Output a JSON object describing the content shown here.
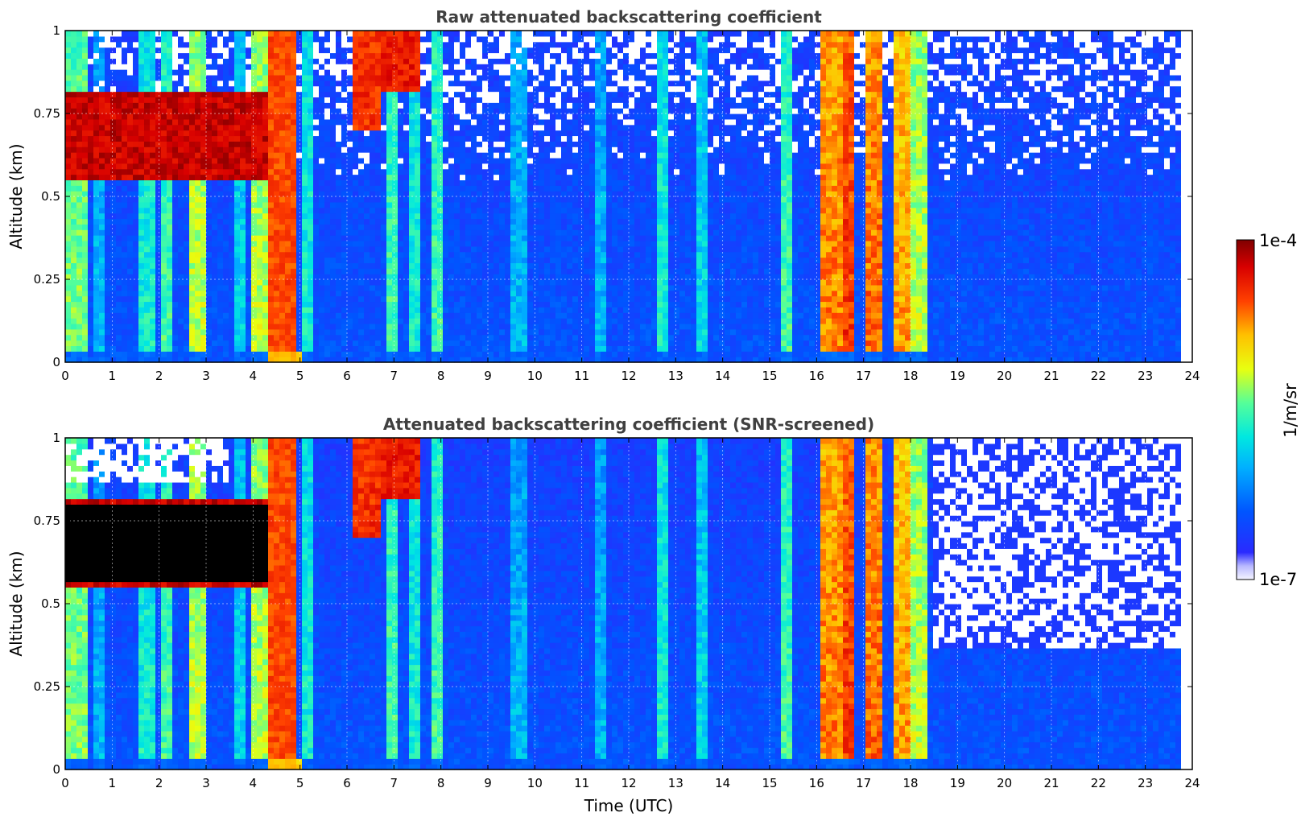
{
  "chart_data": [
    {
      "type": "heatmap",
      "title": "Raw attenuated backscattering coefficient",
      "xlabel": "",
      "ylabel": "Altitude (km)",
      "xlim": [
        0,
        24
      ],
      "ylim": [
        0,
        1
      ],
      "x_ticks": [
        "0",
        "1",
        "2",
        "3",
        "4",
        "5",
        "6",
        "7",
        "8",
        "9",
        "10",
        "11",
        "12",
        "13",
        "14",
        "15",
        "16",
        "17",
        "18",
        "19",
        "20",
        "21",
        "22",
        "23",
        "24"
      ],
      "y_ticks": [
        "0",
        "0.25",
        "0.5",
        "0.75",
        "1"
      ],
      "grid": true,
      "features": [
        {
          "name": "aerosol layer",
          "x_range": [
            0,
            4.3
          ],
          "y_range": [
            0.55,
            0.8
          ],
          "level": 1.0
        },
        {
          "name": "precipitation",
          "x_range": [
            4.3,
            4.95
          ],
          "y_range": [
            0,
            1
          ],
          "level": 0.85
        },
        {
          "name": "cloud",
          "x_range": [
            6.1,
            6.7
          ],
          "y_range": [
            0.7,
            1
          ],
          "level": 0.9
        },
        {
          "name": "cloud",
          "x_range": [
            6.7,
            7.6
          ],
          "y_range": [
            0.8,
            1
          ],
          "level": 0.9
        },
        {
          "name": "precipitation",
          "x_range": [
            16.0,
            18.3
          ],
          "y_range": [
            0,
            1
          ],
          "level": 0.8
        }
      ]
    },
    {
      "type": "heatmap",
      "title": "Attenuated backscattering coefficient (SNR-screened)",
      "xlabel": "Time (UTC)",
      "ylabel": "Altitude (km)",
      "xlim": [
        0,
        24
      ],
      "ylim": [
        0,
        1
      ],
      "x_ticks": [
        "0",
        "1",
        "2",
        "3",
        "4",
        "5",
        "6",
        "7",
        "8",
        "9",
        "10",
        "11",
        "12",
        "13",
        "14",
        "15",
        "16",
        "17",
        "18",
        "19",
        "20",
        "21",
        "22",
        "23",
        "24"
      ],
      "y_ticks": [
        "0",
        "0.25",
        "0.5",
        "0.75",
        "1"
      ],
      "grid": true,
      "features": [
        {
          "name": "aerosol layer (saturated)",
          "x_range": [
            0,
            4.3
          ],
          "y_range": [
            0.55,
            0.8
          ],
          "level": 1.0
        },
        {
          "name": "precipitation",
          "x_range": [
            4.3,
            4.95
          ],
          "y_range": [
            0,
            1
          ],
          "level": 0.85
        },
        {
          "name": "precipitation",
          "x_range": [
            16.0,
            18.3
          ],
          "y_range": [
            0,
            1
          ],
          "level": 0.8
        },
        {
          "name": "screened-out region",
          "x_range": [
            18.5,
            23.8
          ],
          "y_range": [
            0.36,
            1
          ],
          "level": null
        }
      ]
    }
  ],
  "colorbar": {
    "max_label": "1e-4",
    "min_label": "1e-7",
    "unit_label": "1/m/sr",
    "scale": "log",
    "range": [
      1e-07,
      0.0001
    ]
  }
}
